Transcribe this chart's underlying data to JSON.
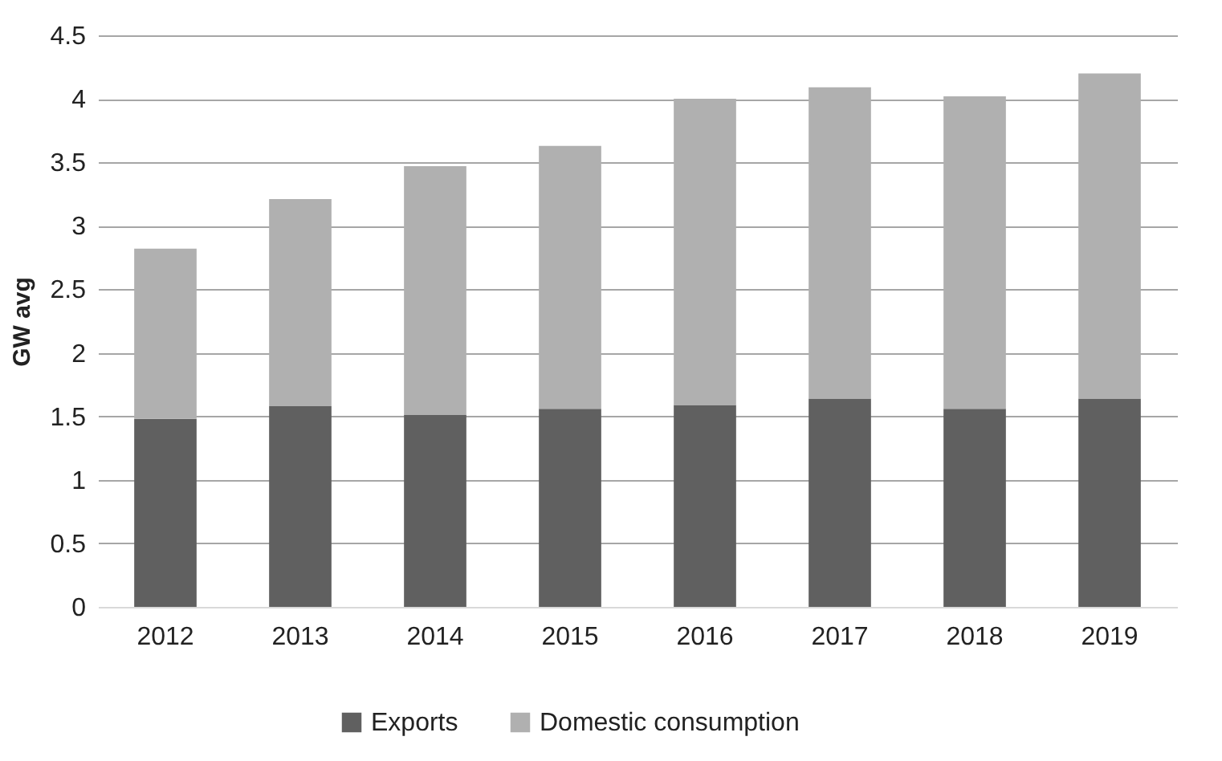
{
  "chart_data": {
    "type": "bar",
    "stacked": true,
    "ylabel": "GW avg",
    "categories": [
      "2012",
      "2013",
      "2014",
      "2015",
      "2016",
      "2017",
      "2018",
      "2019"
    ],
    "series": [
      {
        "name": "Exports",
        "color": "#606060",
        "values": [
          1.48,
          1.58,
          1.51,
          1.56,
          1.59,
          1.64,
          1.56,
          1.64
        ]
      },
      {
        "name": "Domestic consumption",
        "color": "#b0b0b0",
        "values": [
          1.34,
          1.63,
          1.96,
          2.07,
          2.41,
          2.45,
          2.46,
          2.56
        ]
      }
    ],
    "ylim": [
      0,
      4.5
    ],
    "yticks": [
      0,
      0.5,
      1,
      1.5,
      2,
      2.5,
      3,
      3.5,
      4,
      4.5
    ],
    "grid": "y",
    "legend": "bottom"
  }
}
